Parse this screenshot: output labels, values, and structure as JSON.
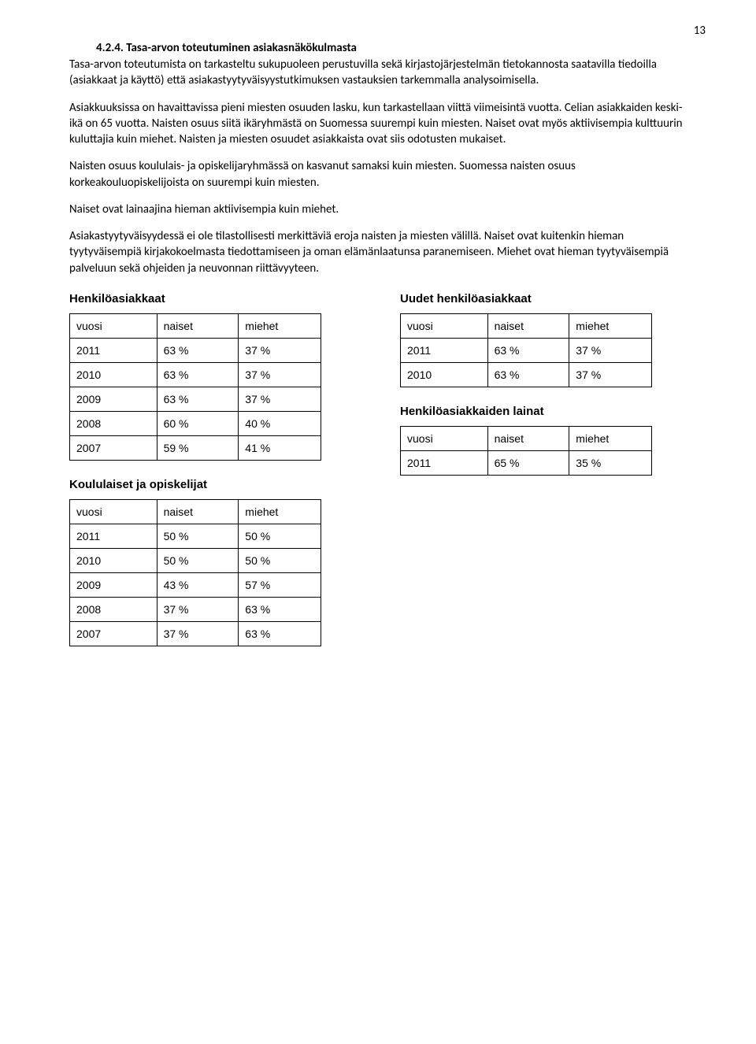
{
  "page_number": "13",
  "section": {
    "number": "4.2.4.",
    "title": "Tasa-arvon toteutuminen asiakasnäkökulmasta"
  },
  "paragraphs": {
    "p1": "Tasa-arvon toteutumista on tarkasteltu sukupuoleen perustuvilla sekä kirjastojärjestelmän tietokannosta saatavilla tiedoilla (asiakkaat ja käyttö) että asiakastyytyväisyystutkimuksen vastauksien tarkemmalla analysoimisella.",
    "p2": "Asiakkuuksissa on havaittavissa pieni miesten osuuden lasku, kun tarkastellaan viittä viimeisintä vuotta. Celian asiakkaiden keski-ikä on 65 vuotta. Naisten osuus siitä ikäryhmästä on Suomessa suurempi kuin miesten. Naiset ovat myös aktiivisempia kulttuurin kuluttajia kuin miehet. Naisten ja miesten osuudet asiakkaista ovat siis odotusten mukaiset.",
    "p3": "Naisten osuus koululais- ja opiskelijaryhmässä on kasvanut samaksi kuin miesten. Suomessa naisten osuus korkeakouluopiskelijoista on suurempi kuin miesten.",
    "p4": "Naiset ovat lainaajina hieman aktiivisempia kuin miehet.",
    "p5": "Asiakastyytyväisyydessä ei ole tilastollisesti merkittäviä eroja naisten ja miesten välillä. Naiset ovat kuitenkin hieman tyytyväisempiä kirjakokoelmasta tiedottamiseen ja oman elämänlaatunsa paranemiseen. Miehet ovat hieman tyytyväisempiä palveluun sekä ohjeiden ja neuvonnan riittävyyteen."
  },
  "labels": {
    "vuosi": "vuosi",
    "naiset": "naiset",
    "miehet": "miehet"
  },
  "tables": {
    "t1": {
      "title": "Henkilöasiakkaat",
      "rows": [
        [
          "2011",
          "63 %",
          "37 %"
        ],
        [
          "2010",
          "63 %",
          "37 %"
        ],
        [
          "2009",
          "63 %",
          "37 %"
        ],
        [
          "2008",
          "60 %",
          "40 %"
        ],
        [
          "2007",
          "59 %",
          "41 %"
        ]
      ]
    },
    "t2": {
      "title": "Koululaiset ja opiskelijat",
      "rows": [
        [
          "2011",
          "50 %",
          "50 %"
        ],
        [
          "2010",
          "50 %",
          "50 %"
        ],
        [
          "2009",
          "43 %",
          "57 %"
        ],
        [
          "2008",
          "37 %",
          "63 %"
        ],
        [
          "2007",
          "37 %",
          "63 %"
        ]
      ]
    },
    "t3": {
      "title": "Uudet henkilöasiakkaat",
      "rows": [
        [
          "2011",
          "63 %",
          "37 %"
        ],
        [
          "2010",
          "63 %",
          "37 %"
        ]
      ]
    },
    "t4": {
      "title": "Henkilöasiakkaiden lainat",
      "rows": [
        [
          "2011",
          "65 %",
          "35 %"
        ]
      ]
    }
  }
}
